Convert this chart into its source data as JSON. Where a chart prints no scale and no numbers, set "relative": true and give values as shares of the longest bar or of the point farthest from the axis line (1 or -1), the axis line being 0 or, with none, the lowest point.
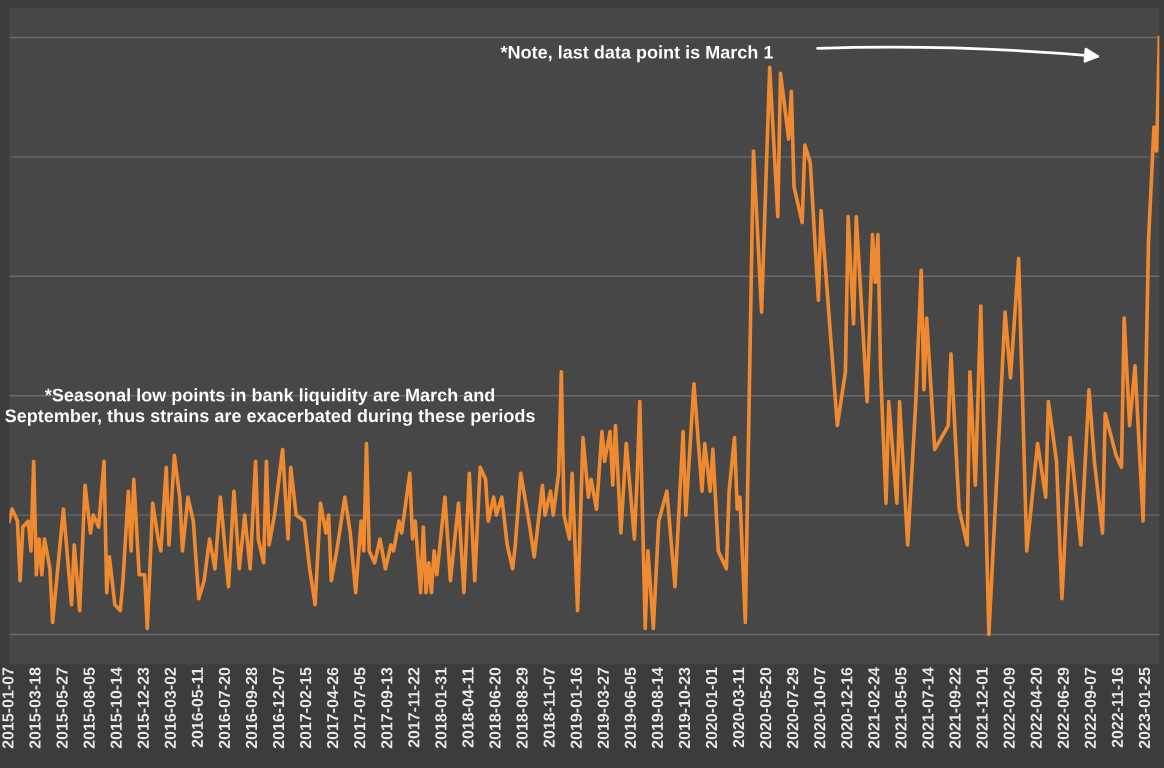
{
  "chart_data": {
    "type": "line",
    "relative": true,
    "grid": "y",
    "marker": "none",
    "line_style": "solid",
    "xlim": [
      "2015-01-07",
      "2023-03-01"
    ],
    "xticks": [
      "2015-01-07",
      "2015-03-18",
      "2015-05-27",
      "2015-08-05",
      "2015-10-14",
      "2015-12-23",
      "2016-03-02",
      "2016-05-11",
      "2016-07-20",
      "2016-09-28",
      "2016-12-07",
      "2017-02-15",
      "2017-04-26",
      "2017-07-05",
      "2017-09-13",
      "2017-11-22",
      "2018-01-31",
      "2018-04-11",
      "2018-06-20",
      "2018-08-29",
      "2018-11-07",
      "2019-01-16",
      "2019-03-27",
      "2019-06-05",
      "2019-08-14",
      "2019-10-23",
      "2020-01-01",
      "2020-03-11",
      "2020-05-20",
      "2020-07-29",
      "2020-10-07",
      "2020-12-16",
      "2021-02-24",
      "2021-05-05",
      "2021-07-14",
      "2021-09-22",
      "2021-12-01",
      "2022-02-09",
      "2022-04-20",
      "2022-06-29",
      "2022-09-07",
      "2022-11-16",
      "2023-01-25"
    ],
    "annotations": [
      "*Note, last data point is March 1",
      "*Seasonal low points in bank liquidity are March and September, thus strains are exacerbated during these periods"
    ],
    "series": [
      {
        "color": "#f08a30",
        "x": [
          "2015-01-07",
          "2015-01-14",
          "2015-01-28",
          "2015-02-04",
          "2015-02-11",
          "2015-02-25",
          "2015-03-04",
          "2015-03-11",
          "2015-03-18",
          "2015-03-25",
          "2015-04-01",
          "2015-04-08",
          "2015-04-22",
          "2015-04-29",
          "2015-05-27",
          "2015-06-17",
          "2015-06-24",
          "2015-07-08",
          "2015-07-22",
          "2015-08-05",
          "2015-08-12",
          "2015-08-26",
          "2015-09-09",
          "2015-09-16",
          "2015-09-23",
          "2015-10-07",
          "2015-10-21",
          "2015-10-28",
          "2015-11-11",
          "2015-11-18",
          "2015-11-25",
          "2015-12-09",
          "2015-12-23",
          "2015-12-30",
          "2016-01-13",
          "2016-01-27",
          "2016-02-03",
          "2016-02-17",
          "2016-02-24",
          "2016-03-09",
          "2016-03-23",
          "2016-03-30",
          "2016-04-13",
          "2016-04-27",
          "2016-05-11",
          "2016-05-25",
          "2016-06-08",
          "2016-06-22",
          "2016-07-06",
          "2016-07-27",
          "2016-08-10",
          "2016-08-24",
          "2016-09-07",
          "2016-09-21",
          "2016-10-05",
          "2016-10-12",
          "2016-10-26",
          "2016-11-02",
          "2016-11-09",
          "2016-11-23",
          "2016-12-14",
          "2016-12-28",
          "2017-01-04",
          "2017-01-18",
          "2017-02-08",
          "2017-02-22",
          "2017-03-08",
          "2017-03-22",
          "2017-04-05",
          "2017-04-12",
          "2017-04-19",
          "2017-05-03",
          "2017-05-24",
          "2017-06-07",
          "2017-06-21",
          "2017-07-05",
          "2017-07-12",
          "2017-07-19",
          "2017-07-26",
          "2017-08-09",
          "2017-08-23",
          "2017-09-06",
          "2017-09-20",
          "2017-09-27",
          "2017-10-11",
          "2017-10-18",
          "2017-11-08",
          "2017-11-15",
          "2017-11-22",
          "2017-12-06",
          "2017-12-13",
          "2017-12-20",
          "2017-12-27",
          "2018-01-03",
          "2018-01-10",
          "2018-01-17",
          "2018-02-07",
          "2018-02-21",
          "2018-03-14",
          "2018-03-28",
          "2018-04-11",
          "2018-04-25",
          "2018-05-09",
          "2018-05-23",
          "2018-05-30",
          "2018-06-13",
          "2018-06-20",
          "2018-07-04",
          "2018-07-18",
          "2018-08-01",
          "2018-08-08",
          "2018-08-22",
          "2018-09-12",
          "2018-09-26",
          "2018-10-17",
          "2018-10-24",
          "2018-11-07",
          "2018-11-14",
          "2018-11-28",
          "2018-12-05",
          "2018-12-12",
          "2018-12-26",
          "2019-01-02",
          "2019-01-16",
          "2019-01-30",
          "2019-02-13",
          "2019-02-20",
          "2019-03-06",
          "2019-03-20",
          "2019-03-27",
          "2019-04-10",
          "2019-04-17",
          "2019-04-24",
          "2019-05-08",
          "2019-05-22",
          "2019-06-12",
          "2019-06-19",
          "2019-06-26",
          "2019-07-10",
          "2019-07-17",
          "2019-07-31",
          "2019-08-14",
          "2019-09-04",
          "2019-09-25",
          "2019-10-16",
          "2019-10-23",
          "2019-11-13",
          "2019-12-04",
          "2019-12-11",
          "2019-12-25",
          "2020-01-01",
          "2020-01-15",
          "2020-02-05",
          "2020-02-12",
          "2020-02-26",
          "2020-03-04",
          "2020-03-11",
          "2020-03-25",
          "2020-04-15",
          "2020-05-06",
          "2020-05-27",
          "2020-06-17",
          "2020-06-24",
          "2020-07-15",
          "2020-07-22",
          "2020-07-29",
          "2020-08-19",
          "2020-08-26",
          "2020-09-09",
          "2020-09-30",
          "2020-10-07",
          "2020-11-18",
          "2020-12-09",
          "2020-12-16",
          "2020-12-30",
          "2021-01-06",
          "2021-02-03",
          "2021-02-17",
          "2021-02-24",
          "2021-03-03",
          "2021-03-10",
          "2021-03-24",
          "2021-03-31",
          "2021-04-21",
          "2021-04-28",
          "2021-05-19",
          "2021-06-09",
          "2021-06-23",
          "2021-06-30",
          "2021-07-07",
          "2021-07-28",
          "2021-09-01",
          "2021-09-08",
          "2021-09-29",
          "2021-10-20",
          "2021-10-27",
          "2021-11-10",
          "2021-11-24",
          "2021-12-15",
          "2022-01-26",
          "2022-02-09",
          "2022-03-02",
          "2022-03-23",
          "2022-04-20",
          "2022-05-11",
          "2022-05-18",
          "2022-06-08",
          "2022-06-22",
          "2022-07-13",
          "2022-08-10",
          "2022-08-31",
          "2022-09-14",
          "2022-10-05",
          "2022-10-12",
          "2022-11-09",
          "2022-11-23",
          "2022-11-30",
          "2022-12-14",
          "2022-12-28",
          "2023-01-18",
          "2023-02-01",
          "2023-02-15",
          "2023-02-22",
          "2023-03-01"
        ],
        "values": [
          0.19,
          0.21,
          0.19,
          0.09,
          0.18,
          0.19,
          0.14,
          0.29,
          0.1,
          0.16,
          0.1,
          0.16,
          0.11,
          0.02,
          0.21,
          0.05,
          0.15,
          0.04,
          0.25,
          0.17,
          0.2,
          0.18,
          0.29,
          0.07,
          0.13,
          0.05,
          0.04,
          0.09,
          0.24,
          0.14,
          0.26,
          0.1,
          0.1,
          0.01,
          0.22,
          0.16,
          0.14,
          0.28,
          0.15,
          0.3,
          0.23,
          0.14,
          0.23,
          0.19,
          0.06,
          0.09,
          0.16,
          0.11,
          0.23,
          0.08,
          0.24,
          0.11,
          0.2,
          0.11,
          0.29,
          0.16,
          0.12,
          0.29,
          0.15,
          0.2,
          0.31,
          0.16,
          0.28,
          0.2,
          0.19,
          0.11,
          0.05,
          0.22,
          0.17,
          0.2,
          0.09,
          0.14,
          0.23,
          0.17,
          0.07,
          0.19,
          0.14,
          0.32,
          0.14,
          0.12,
          0.16,
          0.11,
          0.15,
          0.14,
          0.19,
          0.17,
          0.27,
          0.16,
          0.19,
          0.07,
          0.18,
          0.07,
          0.12,
          0.07,
          0.14,
          0.1,
          0.23,
          0.09,
          0.22,
          0.07,
          0.27,
          0.09,
          0.28,
          0.26,
          0.19,
          0.23,
          0.2,
          0.23,
          0.15,
          0.11,
          0.15,
          0.27,
          0.19,
          0.13,
          0.25,
          0.2,
          0.24,
          0.2,
          0.27,
          0.44,
          0.2,
          0.16,
          0.27,
          0.04,
          0.33,
          0.23,
          0.26,
          0.21,
          0.34,
          0.29,
          0.34,
          0.25,
          0.35,
          0.17,
          0.32,
          0.16,
          0.26,
          0.39,
          0.01,
          0.14,
          0.01,
          0.19,
          0.24,
          0.08,
          0.34,
          0.2,
          0.42,
          0.24,
          0.32,
          0.24,
          0.31,
          0.14,
          0.11,
          0.24,
          0.33,
          0.21,
          0.23,
          0.02,
          0.81,
          0.54,
          0.95,
          0.7,
          0.94,
          0.83,
          0.91,
          0.75,
          0.69,
          0.82,
          0.79,
          0.56,
          0.71,
          0.35,
          0.44,
          0.7,
          0.52,
          0.7,
          0.39,
          0.67,
          0.59,
          0.67,
          0.44,
          0.22,
          0.39,
          0.22,
          0.39,
          0.15,
          0.39,
          0.61,
          0.41,
          0.53,
          0.31,
          0.35,
          0.47,
          0.21,
          0.15,
          0.44,
          0.25,
          0.55,
          0.0,
          0.54,
          0.43,
          0.63,
          0.14,
          0.32,
          0.23,
          0.39,
          0.29,
          0.06,
          0.33,
          0.15,
          0.41,
          0.29,
          0.17,
          0.37,
          0.3,
          0.28,
          0.53,
          0.35,
          0.45,
          0.19,
          0.66,
          0.85,
          0.81,
          1.0
        ]
      }
    ]
  }
}
